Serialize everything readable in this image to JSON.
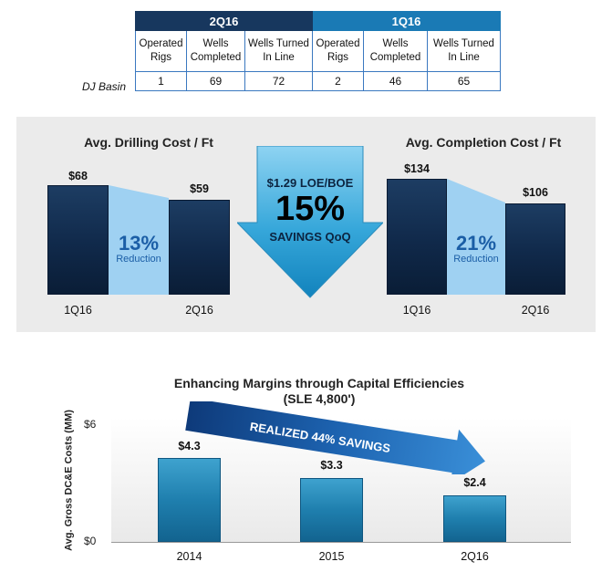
{
  "ops_table": {
    "periods": [
      {
        "label": "2Q16",
        "columns": [
          "Operated Rigs",
          "Wells Completed",
          "Wells Turned In Line"
        ],
        "values": [
          "1",
          "69",
          "72"
        ]
      },
      {
        "label": "1Q16",
        "columns": [
          "Operated Rigs",
          "Wells Completed",
          "Wells Turned In Line"
        ],
        "values": [
          "2",
          "46",
          "65"
        ]
      }
    ],
    "row_label": "DJ Basin"
  },
  "savings_arrow": {
    "line1": "$1.29 LOE/BOE",
    "line2": "15%",
    "line3": "SAVINGS QoQ"
  },
  "colors": {
    "dark_navy": "#17375e",
    "teal": "#1a7ab5",
    "light_blue": "#9fd1f2",
    "panel_gray": "#ebebeb"
  },
  "chart_data": [
    {
      "type": "bar",
      "title": "Avg. Drilling Cost / Ft",
      "categories": [
        "1Q16",
        "2Q16"
      ],
      "values": [
        68,
        59
      ],
      "value_labels": [
        "$68",
        "$59"
      ],
      "reduction": {
        "percent": "13%",
        "label": "Reduction"
      }
    },
    {
      "type": "bar",
      "title": "Avg. Completion Cost / Ft",
      "categories": [
        "1Q16",
        "2Q16"
      ],
      "values": [
        134,
        106
      ],
      "value_labels": [
        "$134",
        "$106"
      ],
      "reduction": {
        "percent": "21%",
        "label": "Reduction"
      }
    },
    {
      "type": "bar",
      "title": "Enhancing Margins through Capital Efficiencies",
      "subtitle": "(SLE 4,800')",
      "categories": [
        "2014",
        "2015",
        "2Q16"
      ],
      "values": [
        4.3,
        3.3,
        2.4
      ],
      "value_labels": [
        "$4.3",
        "$3.3",
        "$2.4"
      ],
      "ylabel": "Avg. Gross DC&E Costs (MM)",
      "ylim": [
        0,
        6
      ],
      "yticks": [
        "$0",
        "$6"
      ],
      "annotation": "REALIZED 44% SAVINGS"
    }
  ]
}
